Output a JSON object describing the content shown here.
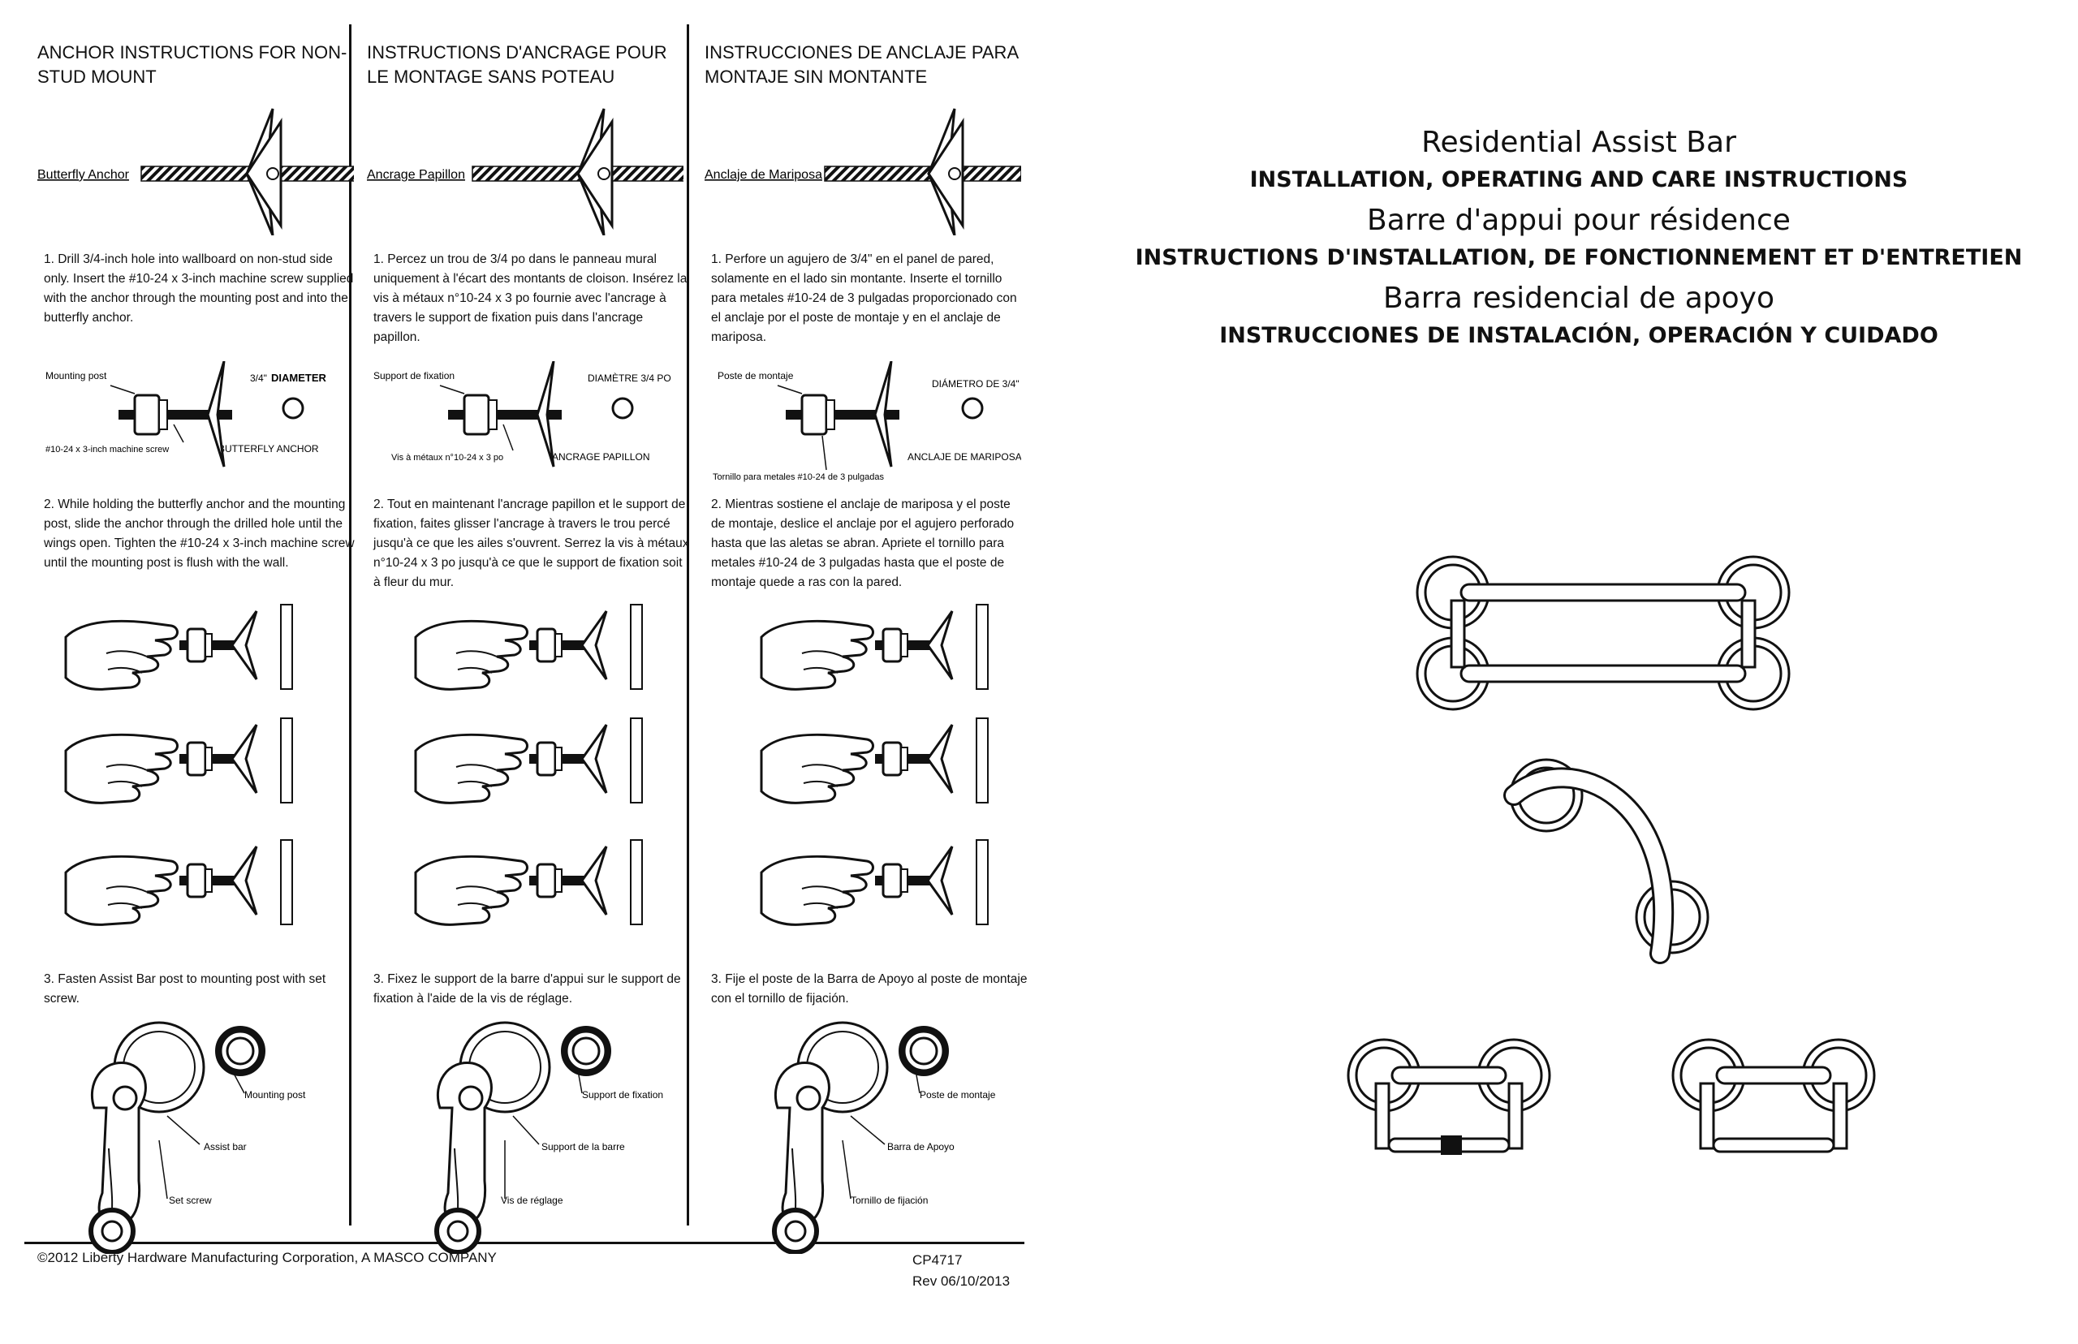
{
  "columns": [
    {
      "title": "ANCHOR INSTRUCTIONS FOR NON-STUD MOUNT",
      "anchor_label": "Butterfly Anchor",
      "step1": "1.  Drill 3/4-inch hole into wallboard on non-stud side only. Insert the #10-24 x 3-inch machine screw supplied with the anchor through the mounting post and into the butterfly anchor.",
      "diagram": {
        "post": "Mounting post",
        "diameter_value": "3/4\"",
        "diameter_word": "DIAMETER",
        "screw": "#10-24 x 3-inch machine screw",
        "anchor": "BUTTERFLY ANCHOR"
      },
      "step2": "2.  While holding the butterfly anchor and the mounting post, slide the anchor through the drilled hole until the wings open. Tighten the #10-24 x 3-inch machine screw until the mounting post is flush with the wall.",
      "step3": "3. Fasten Assist Bar post to mounting post with set screw.",
      "post_labels": {
        "post": "Mounting post",
        "bar": "Assist bar",
        "screw": "Set screw"
      }
    },
    {
      "title": "INSTRUCTIONS D'ANCRAGE POUR LE MONTAGE SANS POTEAU",
      "anchor_label": "Ancrage Papillon",
      "step1": "1.  Percez un trou de 3/4 po dans le panneau mural uniquement à l'écart des montants de cloison. Insérez la vis à métaux n°10-24 x 3 po fournie avec l'ancrage à travers le support de fixation puis dans l'ancrage papillon.",
      "diagram": {
        "post": "Support de fixation",
        "diameter_value": "",
        "diameter_word": "DIAMÈTRE 3/4 PO",
        "screw": "Vis à métaux n°10-24 x 3 po",
        "anchor": "ANCRAGE PAPILLON"
      },
      "step2": "2.  Tout en maintenant l'ancrage papillon et le support de fixation, faites glisser l'ancrage à travers le trou percé jusqu'à ce que les ailes s'ouvrent. Serrez la vis à métaux n°10-24 x 3 po jusqu'à ce que le support de fixation soit à fleur du mur.",
      "step3": "3. Fixez le support de la barre d'appui sur le support de fixation à l'aide de la vis de réglage.",
      "post_labels": {
        "post": "Support de fixation",
        "bar": "Support de la barre",
        "screw": "Vis de réglage"
      }
    },
    {
      "title": "INSTRUCCIONES DE ANCLAJE PARA MONTAJE SIN MONTANTE",
      "anchor_label": "Anclaje de Mariposa",
      "step1": "1.  Perfore un agujero de 3/4\" en el panel de pared, solamente en el lado sin montante. Inserte el tornillo para metales #10-24 de 3 pulgadas proporcionado con el anclaje por el poste de montaje y en el anclaje de mariposa.",
      "diagram": {
        "post": "Poste de montaje",
        "diameter_value": "",
        "diameter_word": "DIÁMETRO DE 3/4\"",
        "screw": "Tornillo para metales #10-24 de 3 pulgadas",
        "anchor": "ANCLAJE DE MARIPOSA"
      },
      "step2": "2.  Mientras sostiene el anclaje de mariposa y el poste de montaje, deslice el anclaje por el agujero perforado hasta que las aletas se abran. Apriete el tornillo para metales #10-24 de 3 pulgadas hasta que el poste de montaje quede a ras con la pared.",
      "step3": "3. Fije el poste de la Barra de Apoyo al poste de montaje con el tornillo de fijación.",
      "post_labels": {
        "post": "Poste de montaje",
        "bar": "Barra de Apoyo",
        "screw": "Tornillo de fijación"
      }
    }
  ],
  "footer": {
    "copyright": "©2012 Liberty Hardware Manufacturing Corporation, A MASCO COMPANY",
    "code": "CP4717",
    "revision": "Rev 06/10/2013"
  },
  "title_block": {
    "en_title": "Residential Assist Bar",
    "en_sub": "INSTALLATION, OPERATING AND CARE INSTRUCTIONS",
    "fr_title": "Barre d'appui pour résidence",
    "fr_sub": "INSTRUCTIONS D'INSTALLATION, DE FONCTIONNEMENT ET D'ENTRETIEN",
    "es_title": "Barra residencial de apoyo",
    "es_sub": "INSTRUCCIONES DE INSTALACIÓN, OPERACIÓN Y CUIDADO"
  }
}
